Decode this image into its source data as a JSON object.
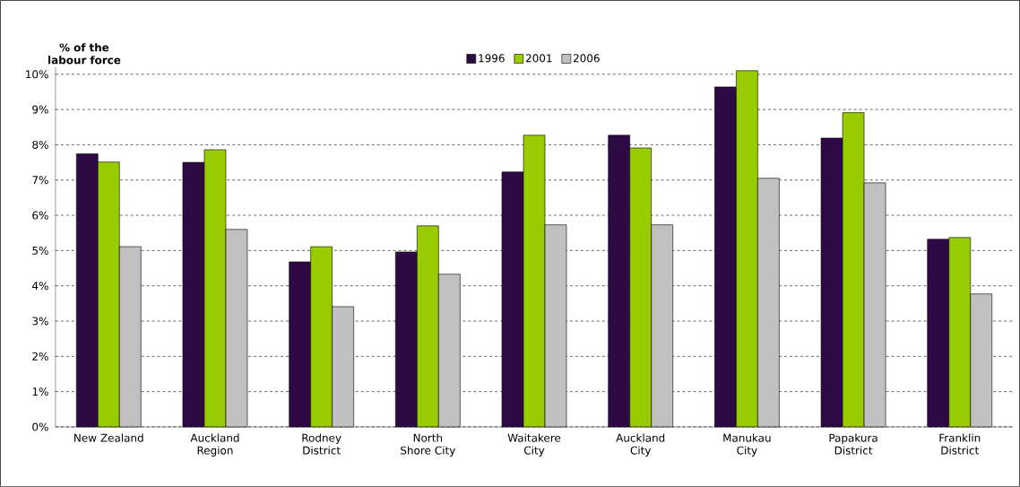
{
  "chart_data": {
    "type": "bar",
    "ylabel": "% of the labour force",
    "categories": [
      "New Zealand",
      "Auckland Region",
      "Rodney District",
      "North Shore City",
      "Waitakere City",
      "Auckland City",
      "Manukau City",
      "Papakura District",
      "Franklin District"
    ],
    "series": [
      {
        "name": "1996",
        "color": "#2e0a45",
        "values": [
          7.74,
          7.5,
          4.68,
          4.96,
          7.23,
          8.27,
          9.64,
          8.19,
          5.32
        ]
      },
      {
        "name": "2001",
        "color": "#99cc00",
        "values": [
          7.51,
          7.86,
          5.11,
          5.7,
          8.27,
          7.91,
          10.1,
          8.91,
          5.37
        ]
      },
      {
        "name": "2006",
        "color": "#c0c0c0",
        "values": [
          5.11,
          5.6,
          3.41,
          4.33,
          5.73,
          5.73,
          7.05,
          6.92,
          3.77
        ]
      }
    ],
    "ylim": [
      0,
      10.2
    ],
    "yticks": [
      {
        "value": 0,
        "label": "0%"
      },
      {
        "value": 1,
        "label": "1%"
      },
      {
        "value": 2,
        "label": "2%"
      },
      {
        "value": 3,
        "label": "3%"
      },
      {
        "value": 4,
        "label": "4%"
      },
      {
        "value": 5,
        "label": "5%"
      },
      {
        "value": 6,
        "label": "6%"
      },
      {
        "value": 7,
        "label": "7%"
      },
      {
        "value": 8,
        "label": "8%"
      },
      {
        "value": 9,
        "label": "9%"
      },
      {
        "value": 10,
        "label": "10%"
      }
    ],
    "grid": "y",
    "legend": "top"
  }
}
